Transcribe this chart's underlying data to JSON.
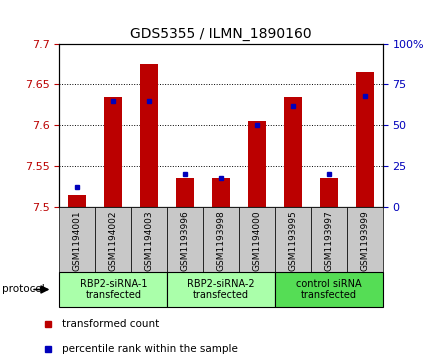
{
  "title": "GDS5355 / ILMN_1890160",
  "samples": [
    "GSM1194001",
    "GSM1194002",
    "GSM1194003",
    "GSM1193996",
    "GSM1193998",
    "GSM1194000",
    "GSM1193995",
    "GSM1193997",
    "GSM1193999"
  ],
  "red_values": [
    7.515,
    7.635,
    7.675,
    7.535,
    7.535,
    7.605,
    7.635,
    7.535,
    7.665
  ],
  "blue_values": [
    12,
    65,
    65,
    20,
    18,
    50,
    62,
    20,
    68
  ],
  "ylim_left": [
    7.5,
    7.7
  ],
  "ylim_right": [
    0,
    100
  ],
  "yticks_left": [
    7.5,
    7.55,
    7.6,
    7.65,
    7.7
  ],
  "yticks_right": [
    0,
    25,
    50,
    75,
    100
  ],
  "group_labels": [
    "RBP2-siRNA-1\ntransfected",
    "RBP2-siRNA-2\ntransfected",
    "control siRNA\ntransfected"
  ],
  "group_colors": [
    "#aaffaa",
    "#aaffaa",
    "#55dd55"
  ],
  "group_ranges": [
    [
      0,
      2
    ],
    [
      3,
      5
    ],
    [
      6,
      8
    ]
  ],
  "protocol_label": "protocol",
  "red_color": "#BB0000",
  "blue_color": "#0000BB",
  "bar_width": 0.5,
  "legend_red": "transformed count",
  "legend_blue": "percentile rank within the sample",
  "sample_box_color": "#C8C8C8",
  "title_fontsize": 10,
  "tick_fontsize": 8,
  "label_fontsize": 8
}
